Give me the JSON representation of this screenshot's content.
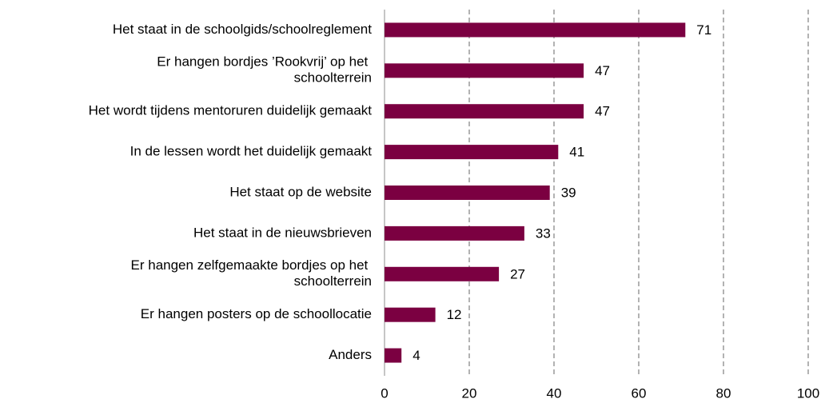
{
  "chart_data": {
    "type": "hbar",
    "categories": [
      "Het staat in de schoolgids/schoolreglement",
      "Er hangen bordjes ’Rookvrij’ op het schoolterrein",
      "Het wordt tijdens mentoruren duidelijk gemaakt",
      "In de lessen wordt het duidelijk gemaakt",
      "Het staat op de website",
      "Het staat in de nieuwsbrieven",
      "Er hangen zelfgemaakte bordjes op het schoolterrein",
      "Er hangen posters op de schoollocatie",
      "Anders"
    ],
    "values": [
      71,
      47,
      47,
      41,
      39,
      33,
      27,
      12,
      4
    ],
    "color": "#7b0041",
    "xlim": [
      0,
      100
    ],
    "xticks": [
      0,
      20,
      40,
      60,
      80,
      100
    ],
    "grid": true
  }
}
